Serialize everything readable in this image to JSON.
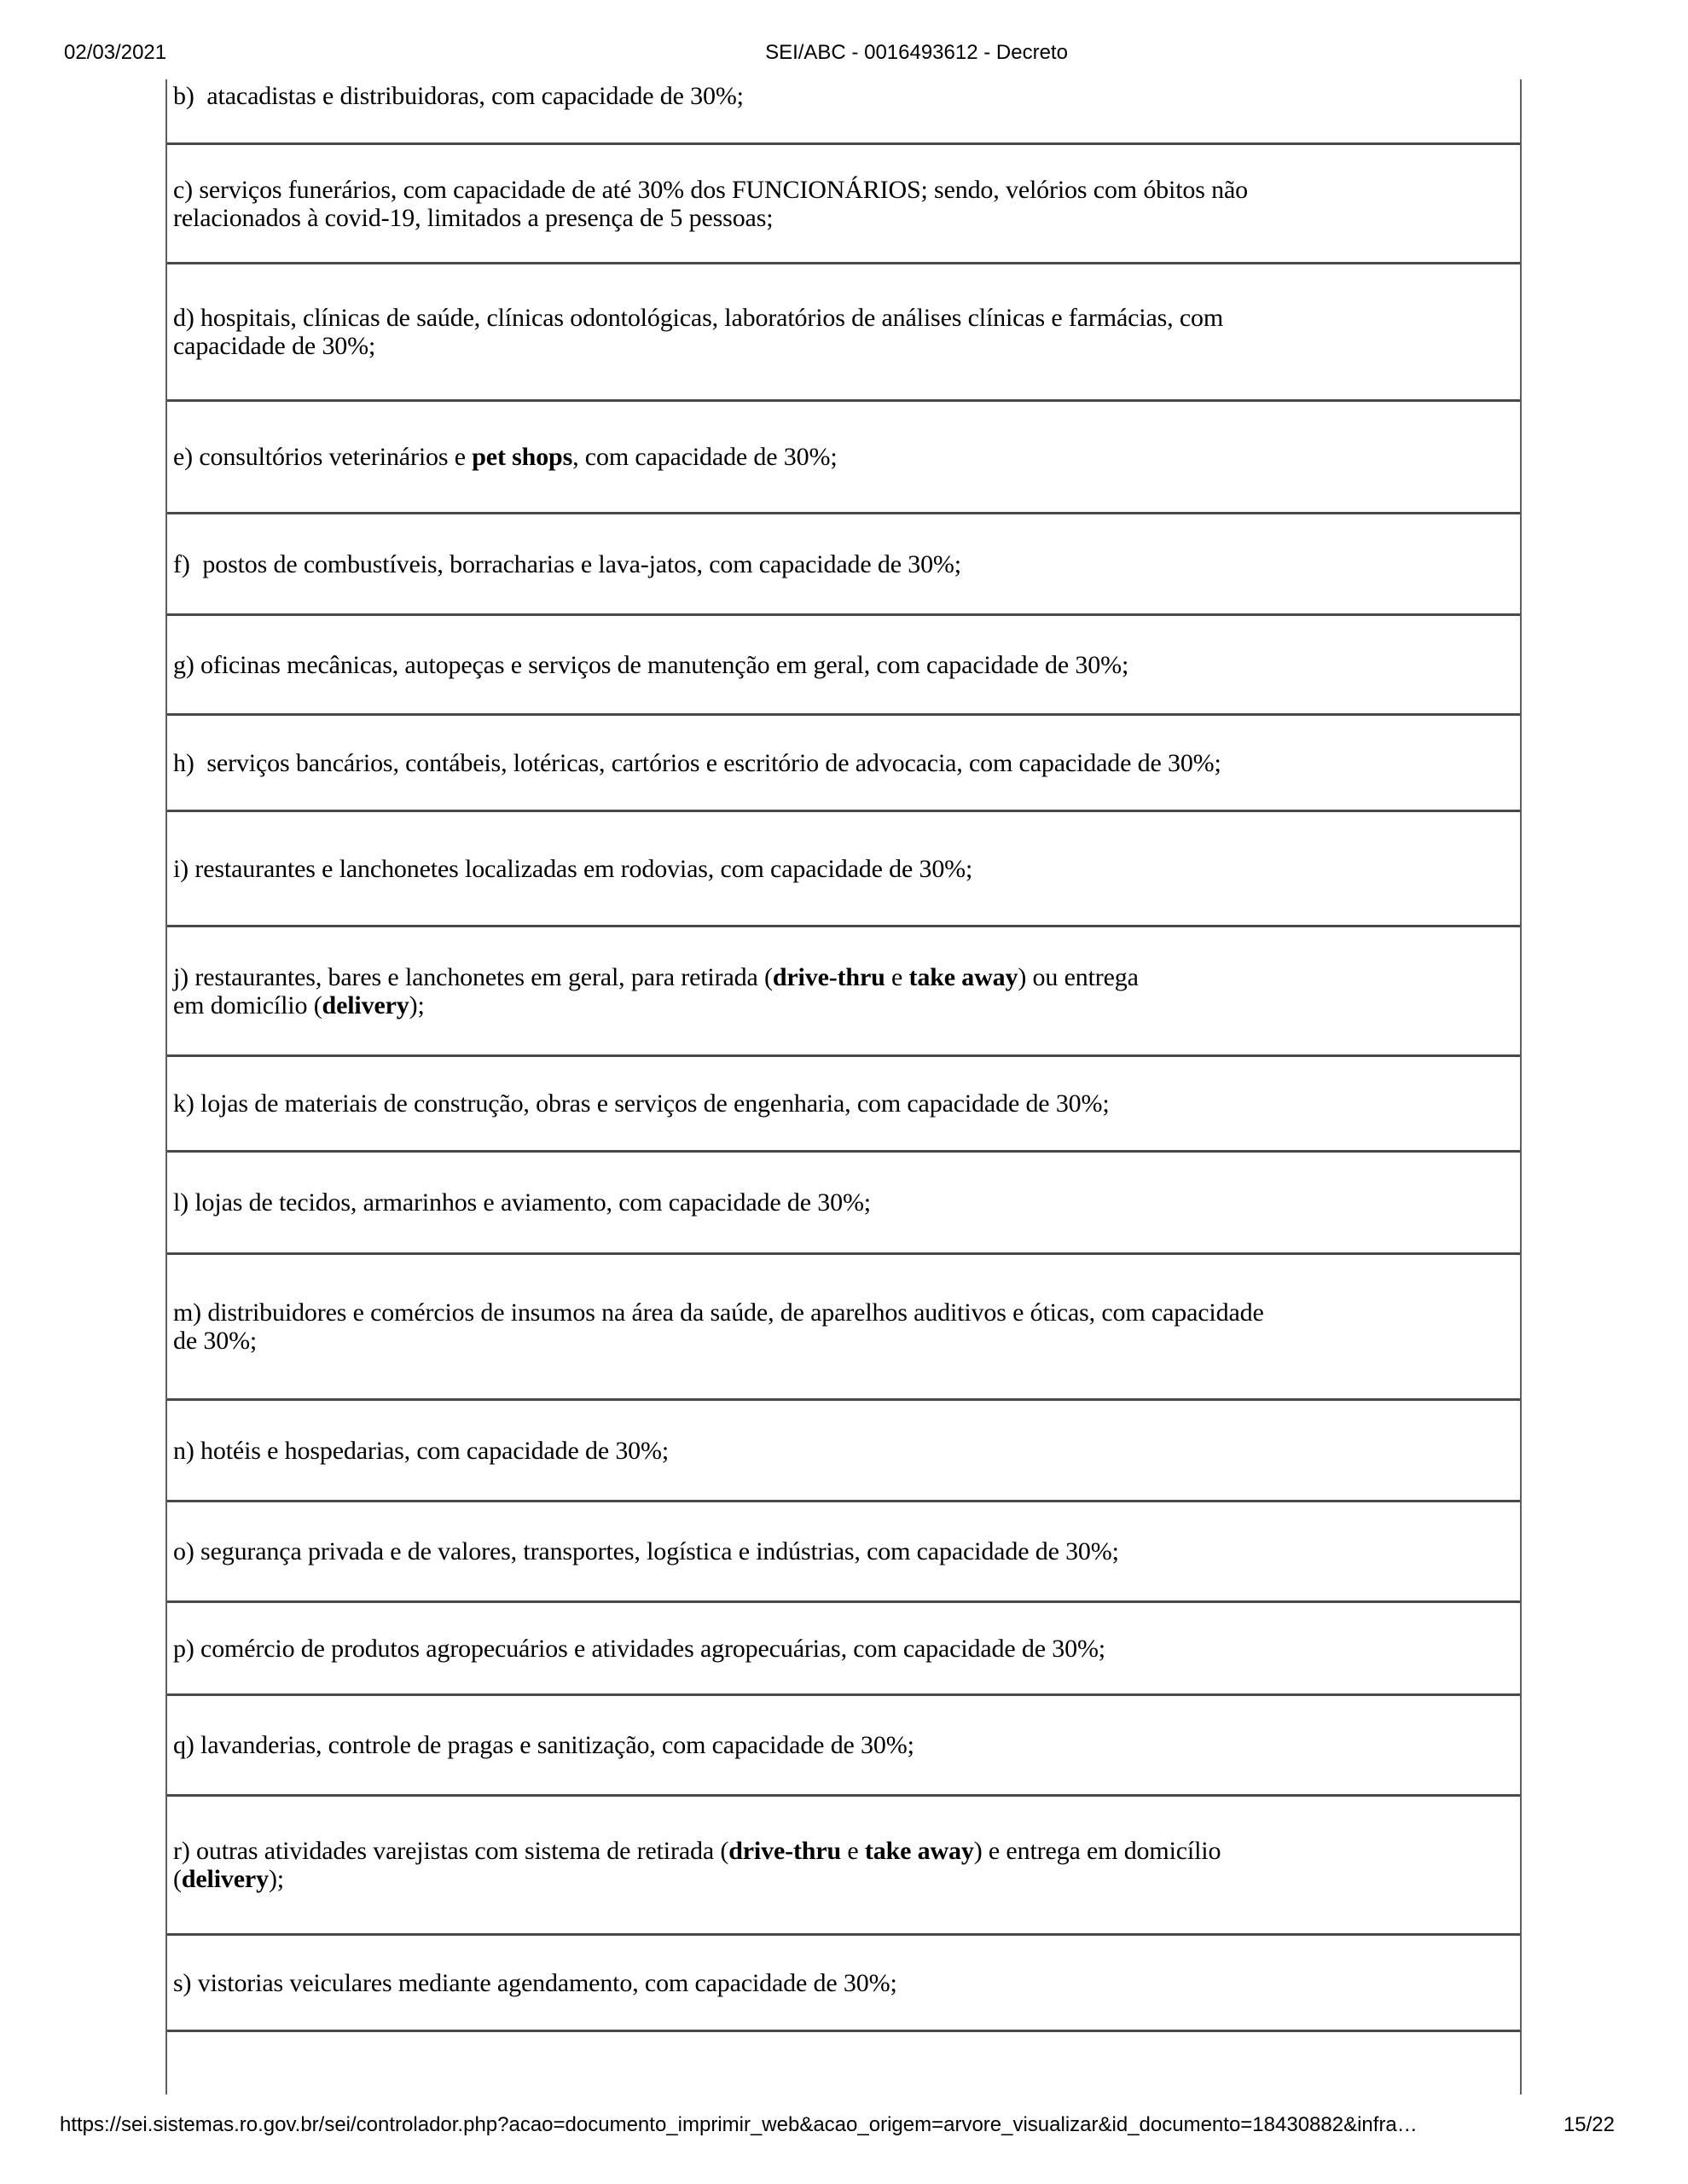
{
  "header": {
    "date": "02/03/2021",
    "title": "SEI/ABC - 0016493612 - Decreto"
  },
  "document": {
    "rows": [
      {
        "id": "item-b",
        "h": 77,
        "first": true,
        "lines": [
          [
            {
              "t": "b)  atacadistas e distribuidoras, com capacidade de 30%;"
            }
          ]
        ]
      },
      {
        "id": "item-c",
        "h": 140,
        "lines": [
          [
            {
              "t": "c) serviços funerários, com capacidade de até 30% dos FUNCIONÁRIOS; sendo, velórios com óbitos não"
            }
          ],
          [
            {
              "t": "relacionados à covid-19, limitados a presença de 5 pessoas;"
            }
          ]
        ]
      },
      {
        "id": "item-d",
        "h": 161,
        "lines": [
          [
            {
              "t": "d) hospitais, clínicas de saúde, clínicas odontológicas, laboratórios de análises clínicas e farmácias, com"
            }
          ],
          [
            {
              "t": "capacidade de 30%;"
            }
          ]
        ]
      },
      {
        "id": "item-e",
        "h": 132,
        "lines": [
          [
            {
              "t": "e) consultórios veterinários e "
            },
            {
              "t": "pet shops",
              "b": true
            },
            {
              "t": ", com capacidade de 30%;"
            }
          ]
        ]
      },
      {
        "id": "item-f",
        "h": 119,
        "lines": [
          [
            {
              "t": "f)  postos de combustíveis, borracharias e lava-jatos, com capacidade de 30%;"
            }
          ]
        ]
      },
      {
        "id": "item-g",
        "h": 117,
        "lines": [
          [
            {
              "t": "g) oficinas mecânicas, autopeças e serviços de manutenção em geral, com capacidade de 30%;"
            }
          ]
        ]
      },
      {
        "id": "item-h",
        "h": 113,
        "lines": [
          [
            {
              "t": "h)  serviços bancários, contábeis, lotéricas, cartórios e escritório de advocacia, com capacidade de 30%;"
            }
          ]
        ]
      },
      {
        "id": "item-i",
        "h": 135,
        "lines": [
          [
            {
              "t": "i) restaurantes e lanchonetes localizadas em rodovias, com capacidade de 30%;"
            }
          ]
        ]
      },
      {
        "id": "item-j",
        "h": 152,
        "lines": [
          [
            {
              "t": "j) restaurantes, bares e lanchonetes em geral, para retirada ("
            },
            {
              "t": "drive-thru",
              "b": true
            },
            {
              "t": " e "
            },
            {
              "t": "take away",
              "b": true
            },
            {
              "t": ") ou entrega"
            }
          ],
          [
            {
              "t": "em domicílio ("
            },
            {
              "t": "delivery",
              "b": true
            },
            {
              "t": ");"
            }
          ]
        ]
      },
      {
        "id": "item-k",
        "h": 112,
        "lines": [
          [
            {
              "t": "k) lojas de materiais de construção, obras e serviços de engenharia, com capacidade de 30%;"
            }
          ]
        ]
      },
      {
        "id": "item-l",
        "h": 120,
        "lines": [
          [
            {
              "t": "l) lojas de tecidos, armarinhos e aviamento, com capacidade de 30%;"
            }
          ]
        ]
      },
      {
        "id": "item-m",
        "h": 171,
        "lines": [
          [
            {
              "t": "m) distribuidores e comércios de insumos na área da saúde, de aparelhos auditivos e óticas, com capacidade"
            }
          ],
          [
            {
              "t": "de 30%;"
            }
          ]
        ]
      },
      {
        "id": "item-n",
        "h": 119,
        "lines": [
          [
            {
              "t": "n) hotéis e hospedarias, com capacidade de 30%;"
            }
          ]
        ]
      },
      {
        "id": "item-o",
        "h": 118,
        "lines": [
          [
            {
              "t": "o) segurança privada e de valores, transportes, logística e indústrias, com capacidade de 30%;"
            }
          ]
        ]
      },
      {
        "id": "item-p",
        "h": 109,
        "lines": [
          [
            {
              "t": "p) comércio de produtos agropecuários e atividades agropecuárias, com capacidade de 30%;"
            }
          ]
        ]
      },
      {
        "id": "item-q",
        "h": 118,
        "lines": [
          [
            {
              "t": "q) lavanderias, controle de pragas e sanitização, com capacidade de 30%;"
            }
          ]
        ]
      },
      {
        "id": "item-r",
        "h": 163,
        "lines": [
          [
            {
              "t": "r) outras atividades varejistas com sistema de retirada ("
            },
            {
              "t": "drive-thru",
              "b": true
            },
            {
              "t": " e "
            },
            {
              "t": "take away",
              "b": true
            },
            {
              "t": ") e entrega em domicílio"
            }
          ],
          [
            {
              "t": "("
            },
            {
              "t": "delivery",
              "b": true
            },
            {
              "t": ");"
            }
          ]
        ]
      },
      {
        "id": "item-s",
        "h": 113,
        "lines": [
          [
            {
              "t": "s) vistorias veiculares mediante agendamento, com capacidade de 30%;"
            }
          ]
        ]
      },
      {
        "id": "item-empty",
        "h": 73,
        "cut": true,
        "lines": []
      }
    ]
  },
  "footer": {
    "url": "https://sei.sistemas.ro.gov.br/sei/controlador.php?acao=documento_imprimir_web&acao_origem=arvore_visualizar&id_documento=18430882&infra…",
    "page": "15/22"
  }
}
